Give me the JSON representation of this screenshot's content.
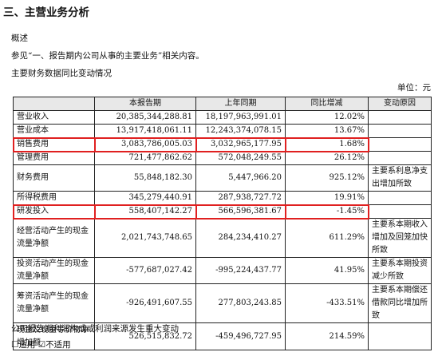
{
  "header": {
    "title": "三、主营业务分析"
  },
  "overview_label": "概述",
  "overview_text": "参见“一、报告期内公司从事的主要业务”相关内容。",
  "table_caption": "主要财务数据同比变动情况",
  "unit": "单位：元",
  "table": {
    "header": [
      "本报告期",
      "上年同期",
      "同比增减",
      "变动原因"
    ],
    "rows": [
      [
        "营业收入",
        "20,385,344,288.81",
        "18,197,963,991.01",
        "12.02%",
        null
      ],
      [
        "营业成本",
        "13,917,418,061.11",
        "12,243,374,078.15",
        "13.67%",
        null
      ],
      [
        "销售费用",
        "3,083,786,005.03",
        "3,032,965,177.95",
        "1.68%",
        null
      ],
      [
        "管理费用",
        "721,477,862.62",
        "572,048,249.55",
        "26.12%",
        null
      ],
      [
        "财务费用",
        "55,848,182.30",
        "5,447,966.20",
        "925.12%",
        "主要系利息净支出增加所致"
      ],
      [
        "所得税费用",
        "345,279,440.91",
        "287,938,727.72",
        "19.91%",
        null
      ],
      [
        "研发投入",
        "558,407,142.27",
        "566,596,381.67",
        "-1.45%",
        null
      ],
      [
        "经营活动产生的现金流量净额",
        "2,021,743,748.65",
        "284,234,410.27",
        "611.29%",
        "主要系本期收入增加及回笼加快所致"
      ],
      [
        "投资活动产生的现金流量净额",
        "-577,687,027.42",
        "-995,224,437.77",
        "41.95%",
        "主要系本期投资减少所致"
      ],
      [
        "筹资活动产生的现金流量净额",
        "-926,491,607.55",
        "277,803,243.85",
        "-433.51%",
        "主要系本期偿还借款同比增加所致"
      ],
      [
        "现金及现金等价物净增加额",
        "526,515,832.72",
        "-459,496,727.95",
        "214.59%",
        null
      ]
    ]
  },
  "footer": {
    "note": "公司报告期利润构成或利润来源发生重大变动",
    "options": "☐适用 ☑不适用"
  }
}
